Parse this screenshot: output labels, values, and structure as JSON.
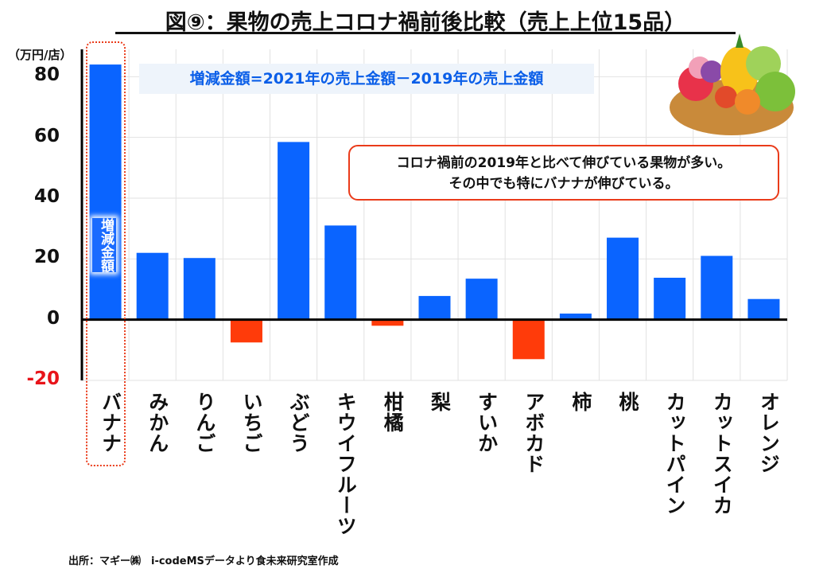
{
  "chart_data": {
    "type": "bar",
    "title": "図⑨：果物の売上コロナ禍前後比較（売上上位15品）",
    "ylabel": "（万円/店）",
    "xlabel": "",
    "ylim": [
      -20,
      89
    ],
    "yticks": [
      80,
      60,
      40,
      20,
      0,
      -20
    ],
    "ytick_labels": [
      "80",
      "60",
      "40",
      "20",
      "0",
      "-20"
    ],
    "grid": true,
    "categories": [
      "バナナ",
      "みかん",
      "りんご",
      "いちご",
      "ぶどう",
      "キウイフルーツ",
      "柑橘",
      "梨",
      "すいか",
      "アボカド",
      "柿",
      "桃",
      "カットパイン",
      "カットスイカ",
      "オレンジ"
    ],
    "values": [
      84,
      22,
      20.3,
      -7.5,
      58.5,
      31,
      -2,
      7.8,
      13.5,
      -13,
      2,
      27,
      13.8,
      21,
      6.8
    ],
    "positive_color": "#0a64ff",
    "negative_color": "#ff3b0a",
    "annotations": {
      "formula": "増減金額=2021年の売上金額－2019年の売上金額",
      "note_line1": "コロナ禍前の2019年と比べて伸びている果物が多い。",
      "note_line2": "その中でも特にバナナが伸びている。",
      "bar_label": "増減金額"
    }
  },
  "source": "出所：マギー㈱　i-codeMSデータより食未来研究室作成"
}
